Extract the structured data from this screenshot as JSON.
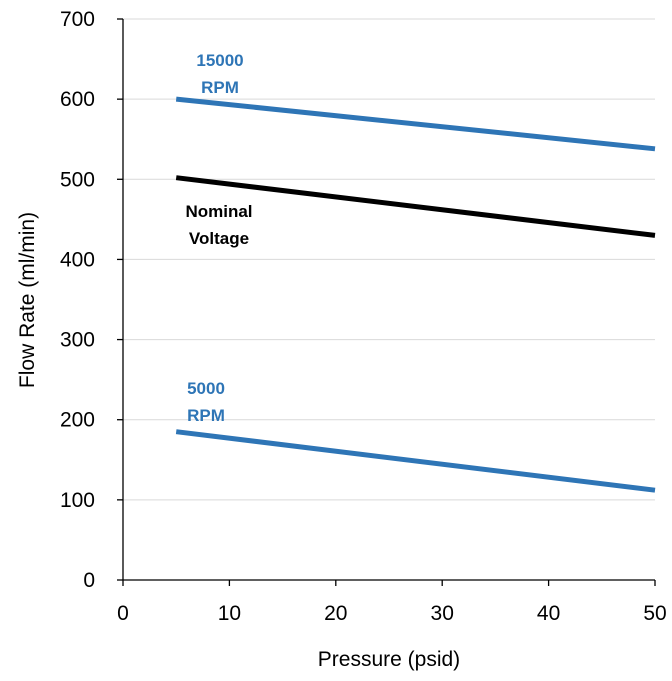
{
  "chart_data": {
    "type": "line",
    "title": "",
    "xlabel": "Pressure (psid)",
    "ylabel": "Flow Rate (ml/min)",
    "xlim": [
      0,
      50
    ],
    "ylim": [
      0,
      700
    ],
    "x_ticks": [
      "0",
      "10",
      "20",
      "30",
      "40",
      "50"
    ],
    "y_ticks": [
      "0",
      "100",
      "200",
      "300",
      "400",
      "500",
      "600",
      "700"
    ],
    "grid": "horizontal",
    "legend": "none",
    "series": [
      {
        "label_lines": [
          "15000",
          "RPM"
        ],
        "color": "#2E75B6",
        "x": [
          5,
          50
        ],
        "y": [
          600,
          538
        ]
      },
      {
        "label_lines": [
          "Nominal",
          "Voltage"
        ],
        "color": "#000000",
        "x": [
          5,
          50
        ],
        "y": [
          502,
          430
        ]
      },
      {
        "label_lines": [
          "5000",
          "RPM"
        ],
        "color": "#2E75B6",
        "x": [
          5,
          50
        ],
        "y": [
          185,
          112
        ]
      }
    ]
  }
}
